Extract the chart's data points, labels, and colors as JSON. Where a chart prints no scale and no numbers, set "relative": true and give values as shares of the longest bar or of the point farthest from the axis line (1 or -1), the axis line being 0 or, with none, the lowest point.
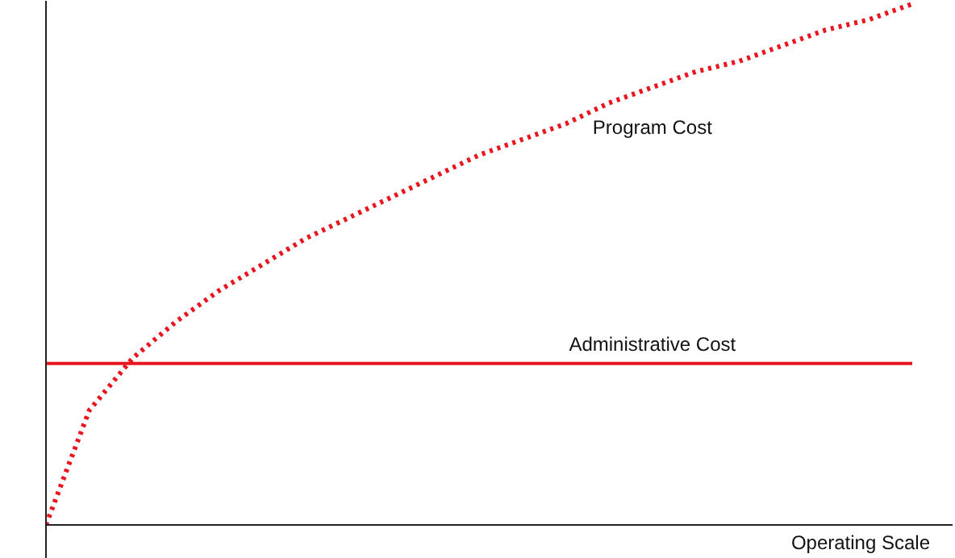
{
  "chart_data": {
    "type": "line",
    "relative": true,
    "xlabel": "Operating Scale",
    "categories": [
      null,
      null,
      null,
      null,
      null,
      null,
      null,
      null,
      null,
      null,
      null,
      null,
      null,
      null,
      null,
      null,
      null,
      null,
      null,
      null,
      null
    ],
    "series": [
      {
        "name": "Program Cost",
        "color": "#e8171f",
        "line_style": "dotted",
        "values": [
          0,
          0.22,
          0.32,
          0.39,
          0.45,
          0.5,
          0.55,
          0.59,
          0.63,
          0.67,
          0.71,
          0.74,
          0.77,
          0.81,
          0.84,
          0.87,
          0.89,
          0.92,
          0.95,
          0.97,
          1.0
        ]
      },
      {
        "name": "Administrative Cost",
        "color": "#e8171f",
        "line_style": "solid",
        "values": [
          0.31,
          0.31,
          0.31,
          0.31,
          0.31,
          0.31,
          0.31,
          0.31,
          0.31,
          0.31,
          0.31,
          0.31,
          0.31,
          0.31,
          0.31,
          0.31,
          0.31,
          0.31,
          0.31,
          0.31,
          0.31
        ]
      }
    ]
  }
}
